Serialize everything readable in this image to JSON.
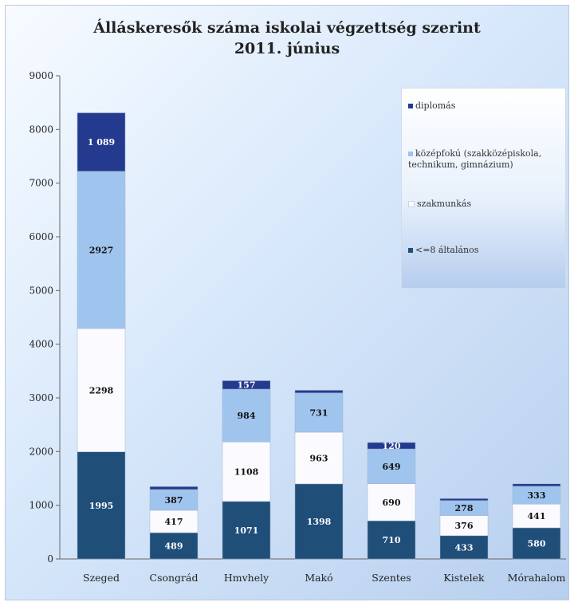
{
  "chart_data": {
    "type": "bar",
    "stacked": true,
    "title": "Álláskeresők száma iskolai végzettség szerint",
    "subtitle": "2011. június",
    "categories": [
      "Szeged",
      "Csongrád",
      "Hmvhely",
      "Makó",
      "Szentes",
      "Kistelek",
      "Mórahalom"
    ],
    "ylim": [
      0,
      9000
    ],
    "yticks": [
      0,
      1000,
      2000,
      3000,
      4000,
      5000,
      6000,
      7000,
      8000,
      9000
    ],
    "grid": false,
    "legend_position": "right",
    "series": [
      {
        "name": "<=8 általános",
        "color": "#1f4e79",
        "label_color": "#ffffff",
        "values": [
          1995,
          489,
          1071,
          1398,
          710,
          433,
          580
        ]
      },
      {
        "name": "szakmunkás",
        "color": "#fbfbff",
        "label_color": "#111111",
        "values": [
          2298,
          417,
          1108,
          963,
          690,
          376,
          441
        ]
      },
      {
        "name": "középfokú (szakközépiskola, technikum, gimnázium)",
        "color": "#9fc4ee",
        "label_color": "#111111",
        "values": [
          2927,
          387,
          984,
          731,
          649,
          278,
          333
        ]
      },
      {
        "name": "diplomás",
        "color": "#243a8f",
        "label_color": "#ffffff",
        "values": [
          1089,
          55,
          157,
          50,
          120,
          38,
          45
        ]
      }
    ],
    "data_labels": [
      [
        "1995",
        "489",
        "1071",
        "1398",
        "710",
        "433",
        "580"
      ],
      [
        "2298",
        "417",
        "1108",
        "963",
        "690",
        "376",
        "441"
      ],
      [
        "2927",
        "387",
        "984",
        "731",
        "649",
        "278",
        "333"
      ],
      [
        "1 089",
        "",
        "157",
        "",
        "120",
        "",
        ""
      ]
    ]
  }
}
